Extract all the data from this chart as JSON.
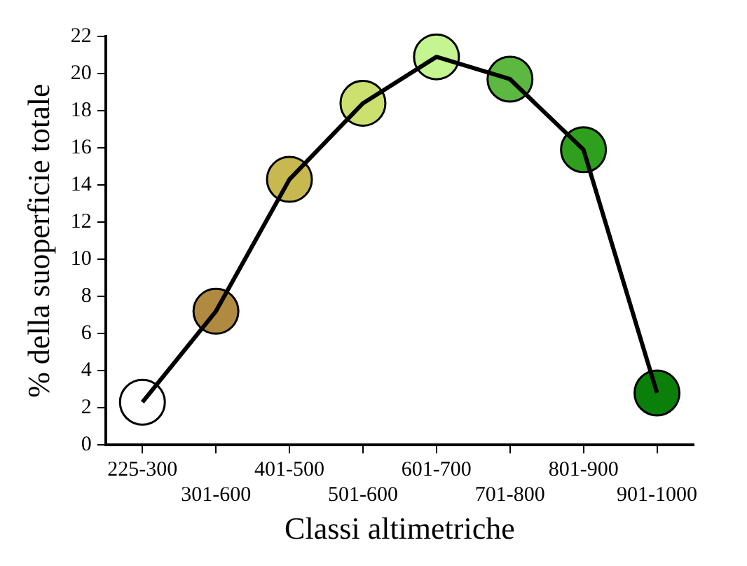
{
  "chart_data": {
    "type": "line",
    "xlabel": "Classi altimetriche",
    "ylabel": "% della suoperficie totale",
    "categories": [
      "225-300",
      "301-600",
      "401-500",
      "501-600",
      "601-700",
      "701-800",
      "801-900",
      "901-1000"
    ],
    "series": [
      {
        "color": "#000000",
        "marker": "none",
        "values": [
          2.3,
          7.2,
          14.3,
          18.4,
          20.9,
          19.7,
          15.9,
          2.8
        ]
      },
      {
        "type": "scatter",
        "colors": [
          "#ffffff",
          "#b08a40",
          "#c8b850",
          "#cce070",
          "#c4f590",
          "#5cb840",
          "#2ea01e",
          "#0a800a"
        ],
        "values": [
          2.3,
          7.2,
          14.3,
          18.4,
          20.9,
          19.7,
          15.9,
          2.8
        ]
      }
    ],
    "ylim": [
      0,
      22
    ],
    "yticks": [
      0,
      2,
      4,
      6,
      8,
      10,
      12,
      14,
      16,
      18,
      20,
      22
    ],
    "grid": false,
    "legend": false,
    "marker": "circle",
    "line_style": "solid"
  }
}
